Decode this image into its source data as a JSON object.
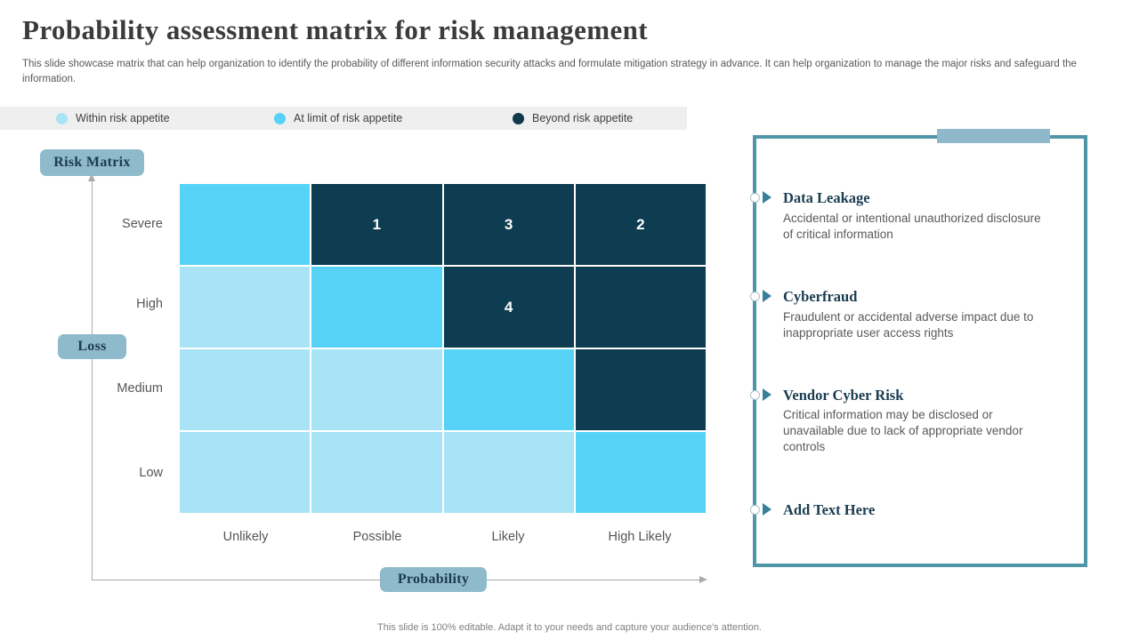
{
  "slide": {
    "title": "Probability assessment matrix for risk management",
    "subtitle": "This slide showcase matrix that can help organization to identify the probability of different information security attacks and formulate mitigation strategy in advance. It can help organization to manage the major risks and safeguard the information.",
    "footer": "This slide is 100% editable. Adapt it to your needs and capture your audience's attention."
  },
  "legend": {
    "items": [
      {
        "label": "Within risk appetite",
        "color": "#a9e3f6"
      },
      {
        "label": "At limit of risk appetite",
        "color": "#57d2f7"
      },
      {
        "label": "Beyond risk appetite",
        "color": "#12384c"
      }
    ]
  },
  "axes": {
    "matrix_label": "Risk Matrix",
    "y_axis_label": "Loss",
    "x_axis_label": "Probability"
  },
  "chart_data": {
    "type": "heatmap",
    "title": "Risk Matrix",
    "rows": [
      "Severe",
      "High",
      "Medium",
      "Low"
    ],
    "columns": [
      "Unlikely",
      "Possible",
      "Likely",
      "High Likely"
    ],
    "x_axis_title": "Probability",
    "y_axis_title": "Loss",
    "level_meaning": {
      "within": "Within risk appetite",
      "at-limit": "At limit of risk appetite",
      "beyond": "Beyond risk appetite"
    },
    "level_colors": {
      "within": "#a9e3f6",
      "at-limit": "#57d2f7",
      "beyond": "#0e3c51"
    },
    "cells": [
      [
        {
          "level": "at-limit",
          "value": ""
        },
        {
          "level": "beyond",
          "value": "1"
        },
        {
          "level": "beyond",
          "value": "3"
        },
        {
          "level": "beyond",
          "value": "2"
        }
      ],
      [
        {
          "level": "within",
          "value": ""
        },
        {
          "level": "at-limit",
          "value": ""
        },
        {
          "level": "beyond",
          "value": "4"
        },
        {
          "level": "beyond",
          "value": ""
        }
      ],
      [
        {
          "level": "within",
          "value": ""
        },
        {
          "level": "within",
          "value": ""
        },
        {
          "level": "at-limit",
          "value": ""
        },
        {
          "level": "beyond",
          "value": ""
        }
      ],
      [
        {
          "level": "within",
          "value": ""
        },
        {
          "level": "within",
          "value": ""
        },
        {
          "level": "within",
          "value": ""
        },
        {
          "level": "at-limit",
          "value": ""
        }
      ]
    ]
  },
  "risk_panel": {
    "items": [
      {
        "title": "Data Leakage",
        "description": "Accidental or intentional unauthorized disclosure of critical information"
      },
      {
        "title": "Cyberfraud",
        "description": "Fraudulent or accidental adverse impact due to inappropriate user access rights"
      },
      {
        "title": "Vendor Cyber Risk",
        "description": "Critical information may be disclosed or unavailable due to lack of appropriate vendor controls"
      },
      {
        "title": "Add Text Here",
        "description": ""
      }
    ]
  },
  "colors": {
    "panel_border": "#4e96a8",
    "panel_tab": "#8fb9cb",
    "chip_background": "#8fbacc",
    "heading_navy": "#1a3c50",
    "body_gray": "#595959",
    "legend_bar_background": "#efefef"
  }
}
